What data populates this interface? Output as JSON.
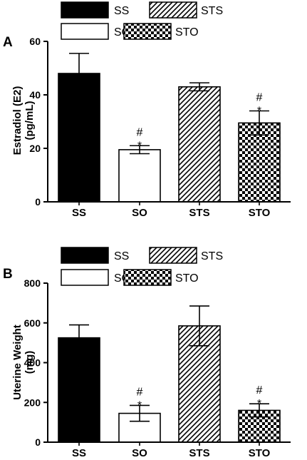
{
  "legend": [
    {
      "label": "SS",
      "pattern": "solid"
    },
    {
      "label": "STS",
      "pattern": "hatch"
    },
    {
      "label": "SO",
      "pattern": "white"
    },
    {
      "label": "STO",
      "pattern": "checker"
    }
  ],
  "colors": {
    "ink": "#000000",
    "paper": "#ffffff"
  },
  "chart_data": [
    {
      "type": "bar",
      "panel": "A",
      "title": "",
      "xlabel": "",
      "ylabel_lines": [
        "Estradiol (E2)",
        "(pg/mL)"
      ],
      "categories": [
        "SS",
        "SO",
        "STS",
        "STO"
      ],
      "values": [
        48,
        19.5,
        43,
        29.5
      ],
      "errors": [
        7.5,
        1.5,
        1.5,
        4.5
      ],
      "ylim": [
        0,
        60
      ],
      "yticks": [
        0,
        20,
        40,
        60
      ],
      "annotations": [
        {
          "category": "SO",
          "marks": [
            "#",
            "*"
          ]
        },
        {
          "category": "STO",
          "marks": [
            "#",
            "*"
          ]
        }
      ],
      "grid": false
    },
    {
      "type": "bar",
      "panel": "B",
      "title": "",
      "xlabel": "",
      "ylabel_lines": [
        "Uterine Weight",
        "(mg)"
      ],
      "categories": [
        "SS",
        "SO",
        "STS",
        "STO"
      ],
      "values": [
        525,
        145,
        585,
        160
      ],
      "errors": [
        65,
        40,
        100,
        33
      ],
      "ylim": [
        0,
        800
      ],
      "yticks": [
        0,
        200,
        400,
        600,
        800
      ],
      "annotations": [
        {
          "category": "SO",
          "marks": [
            "#",
            "*"
          ]
        },
        {
          "category": "STO",
          "marks": [
            "#",
            "*"
          ]
        }
      ],
      "grid": false
    }
  ]
}
